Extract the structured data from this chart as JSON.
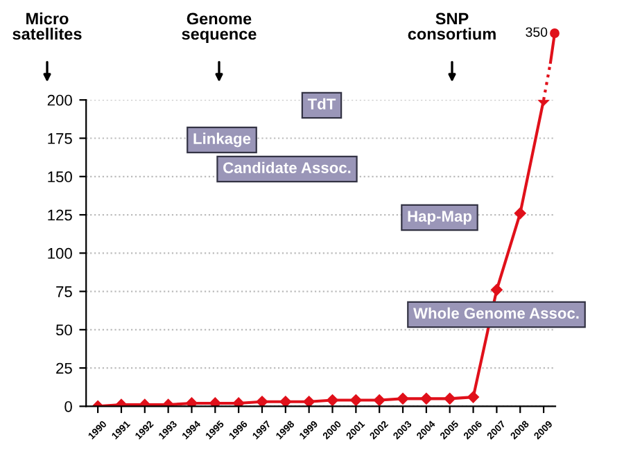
{
  "chart_data": {
    "type": "line",
    "categories": [
      "1990",
      "1991",
      "1992",
      "1993",
      "1994",
      "1995",
      "1996",
      "1997",
      "1998",
      "1999",
      "2000",
      "2001",
      "2002",
      "2003",
      "2004",
      "2005",
      "2006",
      "2007",
      "2008",
      "2009"
    ],
    "series": [
      {
        "color": "#e0101a",
        "values": [
          0,
          1,
          1,
          1,
          2,
          2,
          2,
          3,
          3,
          3,
          4,
          4,
          4,
          5,
          5,
          5,
          6,
          76,
          126,
          200
        ]
      }
    ],
    "ylim": [
      0,
      200
    ],
    "yticks": [
      0,
      25,
      50,
      75,
      100,
      125,
      150,
      175,
      200
    ],
    "grid": "y",
    "marker": "diamond",
    "line_style": "solid",
    "annotations": [
      "Micro satellites",
      "Genome sequence",
      "SNP consortium",
      "350",
      "TdT",
      "Linkage",
      "Candidate Assoc.",
      "Hap-Map",
      "Whole Genome Assoc."
    ]
  }
}
